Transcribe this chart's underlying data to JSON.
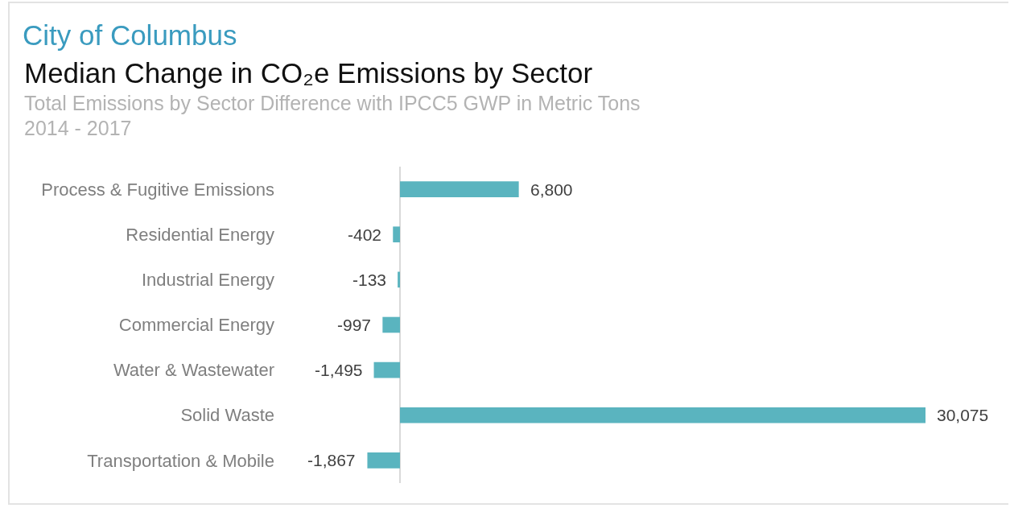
{
  "chart_data": {
    "type": "bar",
    "orientation": "horizontal",
    "title": "City of Columbus",
    "subtitle": "Median Change in CO₂e Emissions by Sector",
    "annotations": [
      "Total Emissions by Sector Difference with IPCC5 GWP in Metric Tons",
      "2014 - 2017"
    ],
    "categories": [
      "Process & Fugitive Emissions",
      "Residential Energy",
      "Industrial Energy",
      "Commercial Energy",
      "Water & Wastewater",
      "Solid Waste",
      "Transportation & Mobile"
    ],
    "values": [
      6800,
      -402,
      -133,
      -997,
      -1495,
      30075,
      -1867
    ],
    "value_labels": [
      "6,800",
      "-402",
      "-133",
      "-997",
      "-1,495",
      "30,075",
      "-1,867"
    ],
    "color": "#5ab4bf",
    "tick_labels": "y"
  }
}
